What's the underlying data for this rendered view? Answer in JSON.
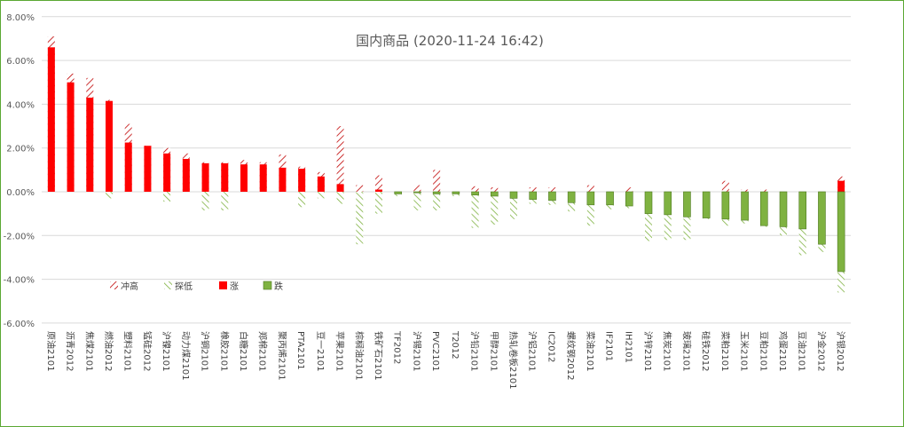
{
  "chart_data": {
    "type": "bar",
    "title": "国内商品 (2020-11-24 16:42)",
    "ylim": [
      -6,
      8
    ],
    "yticks": [
      -6,
      -4,
      -2,
      0,
      2,
      4,
      6,
      8
    ],
    "ytick_labels": [
      "-6.00%",
      "-4.00%",
      "-2.00%",
      "0.00%",
      "2.00%",
      "4.00%",
      "6.00%",
      "8.00%"
    ],
    "grid": true,
    "legend_position": "bottom-left",
    "legend": [
      "冲高",
      "探低",
      "涨",
      "跌"
    ],
    "colors": {
      "up": "#ff0000",
      "down": "#7fb241",
      "high_hatch": "#c00000",
      "low_hatch": "#7fb241",
      "grid": "#d9d9d9",
      "frame": "#5aa832"
    },
    "categories": [
      "原油2101",
      "沥青2012",
      "焦煤2101",
      "燃油2012",
      "塑料2101",
      "锰硅2012",
      "沪镍2101",
      "动力煤2101",
      "沪铜2101",
      "橡胶2101",
      "白糖2101",
      "郑棉2101",
      "聚丙烯2101",
      "PTA2101",
      "豆一2101",
      "苹果2101",
      "棕榈油2101",
      "铁矿石2101",
      "TF2012",
      "沪锡2101",
      "PVC2101",
      "T2012",
      "沪铅2101",
      "甲醇2101",
      "热轧卷板2101",
      "沪铝2101",
      "IC2012",
      "螺纹钢2012",
      "菜油2101",
      "IF2101",
      "IH2101",
      "沪锌2101",
      "焦炭2101",
      "玻璃2101",
      "硅铁2012",
      "菜粕2101",
      "玉米2101",
      "豆粕2101",
      "鸡蛋2101",
      "豆油2101",
      "沪金2012",
      "沪银2012"
    ],
    "series": [
      {
        "name": "冲高",
        "values": [
          7.1,
          5.4,
          5.2,
          4.2,
          3.1,
          2.1,
          2.0,
          1.75,
          1.35,
          1.35,
          1.45,
          1.35,
          1.7,
          1.15,
          0.9,
          3.0,
          0.3,
          0.75,
          0.0,
          0.3,
          1.0,
          0.0,
          0.25,
          0.2,
          0.0,
          0.2,
          0.2,
          0.0,
          0.3,
          0.0,
          0.2,
          0.0,
          0.0,
          0.0,
          0.0,
          0.5,
          0.1,
          0.1,
          0.0,
          0.0,
          0.0,
          0.7
        ]
      },
      {
        "name": "探低",
        "values": [
          0.0,
          0.0,
          0.0,
          -0.3,
          0.0,
          0.0,
          -0.45,
          0.0,
          -0.85,
          -0.85,
          0.0,
          0.0,
          0.0,
          -0.7,
          -0.3,
          -0.55,
          -2.4,
          -1.0,
          -0.2,
          -0.85,
          -0.85,
          -0.2,
          -1.65,
          -1.5,
          -1.25,
          -0.55,
          -0.6,
          -0.9,
          -1.55,
          -0.8,
          -0.75,
          -2.25,
          -2.2,
          -2.2,
          -1.25,
          -1.55,
          -1.45,
          -1.6,
          -2.0,
          -2.9,
          -2.75,
          -4.6
        ]
      },
      {
        "name": "涨",
        "values": [
          6.6,
          5.0,
          4.3,
          4.15,
          2.25,
          2.1,
          1.75,
          1.5,
          1.3,
          1.3,
          1.25,
          1.25,
          1.1,
          1.05,
          0.7,
          0.35,
          0.0,
          0.1,
          0.0,
          0.0,
          0.0,
          0.0,
          0.0,
          0.0,
          0.0,
          0.0,
          0.0,
          0.0,
          0.0,
          0.0,
          0.0,
          0.0,
          0.0,
          0.0,
          0.0,
          0.0,
          0.0,
          0.0,
          0.0,
          0.0,
          0.0,
          0.5
        ]
      },
      {
        "name": "跌",
        "values": [
          0.0,
          0.0,
          0.0,
          0.0,
          0.0,
          0.0,
          0.0,
          0.0,
          0.0,
          0.0,
          0.0,
          0.0,
          0.0,
          0.0,
          0.0,
          0.0,
          0.0,
          0.0,
          -0.1,
          -0.05,
          -0.1,
          -0.1,
          -0.15,
          -0.2,
          -0.3,
          -0.35,
          -0.4,
          -0.5,
          -0.6,
          -0.6,
          -0.65,
          -1.0,
          -1.05,
          -1.15,
          -1.2,
          -1.25,
          -1.3,
          -1.55,
          -1.6,
          -1.7,
          -2.4,
          -3.65
        ]
      }
    ]
  }
}
